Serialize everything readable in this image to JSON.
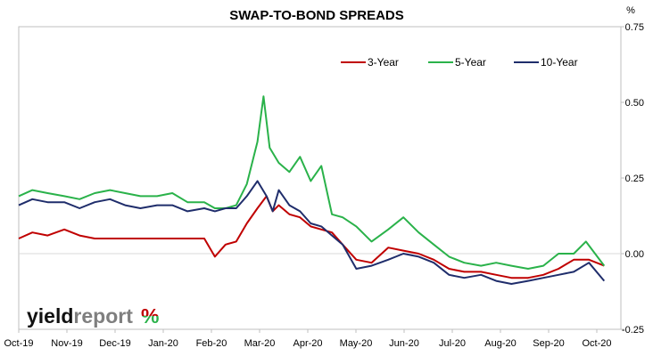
{
  "chart_data": {
    "type": "line",
    "title": "SWAP-TO-BOND SPREADS",
    "yunit": "%",
    "ylim": [
      -0.25,
      0.75
    ],
    "yticks": [
      "0.75",
      "0.50",
      "0.25",
      "0.00",
      "-0.25"
    ],
    "ytick_values": [
      0.75,
      0.5,
      0.25,
      0.0,
      -0.25
    ],
    "xticks": [
      "Oct-19",
      "Nov-19",
      "Dec-19",
      "Jan-20",
      "Feb-20",
      "Mar-20",
      "Apr-20",
      "May-20",
      "Jun-20",
      "Jul-20",
      "Aug-20",
      "Sep-20",
      "Oct-20"
    ],
    "x_start": "2019-10-01",
    "x_end": "2020-10-31",
    "legend": "top-right",
    "grid": false,
    "series": [
      {
        "name": "3-Year",
        "color": "#c00000",
        "points": [
          [
            "2019-10-01",
            0.05
          ],
          [
            "2019-10-10",
            0.07
          ],
          [
            "2019-10-20",
            0.06
          ],
          [
            "2019-10-31",
            0.08
          ],
          [
            "2019-11-10",
            0.06
          ],
          [
            "2019-11-20",
            0.05
          ],
          [
            "2019-11-30",
            0.05
          ],
          [
            "2019-12-10",
            0.05
          ],
          [
            "2019-12-20",
            0.05
          ],
          [
            "2019-12-31",
            0.05
          ],
          [
            "2020-01-10",
            0.05
          ],
          [
            "2020-01-20",
            0.05
          ],
          [
            "2020-01-31",
            0.05
          ],
          [
            "2020-02-07",
            -0.01
          ],
          [
            "2020-02-14",
            0.03
          ],
          [
            "2020-02-21",
            0.04
          ],
          [
            "2020-02-28",
            0.1
          ],
          [
            "2020-03-06",
            0.15
          ],
          [
            "2020-03-12",
            0.19
          ],
          [
            "2020-03-16",
            0.14
          ],
          [
            "2020-03-20",
            0.16
          ],
          [
            "2020-03-27",
            0.13
          ],
          [
            "2020-04-03",
            0.12
          ],
          [
            "2020-04-10",
            0.09
          ],
          [
            "2020-04-17",
            0.08
          ],
          [
            "2020-04-24",
            0.07
          ],
          [
            "2020-05-01",
            0.03
          ],
          [
            "2020-05-10",
            -0.02
          ],
          [
            "2020-05-20",
            -0.03
          ],
          [
            "2020-05-31",
            0.02
          ],
          [
            "2020-06-10",
            0.01
          ],
          [
            "2020-06-20",
            0.0
          ],
          [
            "2020-06-30",
            -0.02
          ],
          [
            "2020-07-10",
            -0.05
          ],
          [
            "2020-07-20",
            -0.06
          ],
          [
            "2020-07-31",
            -0.06
          ],
          [
            "2020-08-10",
            -0.07
          ],
          [
            "2020-08-20",
            -0.08
          ],
          [
            "2020-08-31",
            -0.08
          ],
          [
            "2020-09-10",
            -0.07
          ],
          [
            "2020-09-20",
            -0.05
          ],
          [
            "2020-09-30",
            -0.02
          ],
          [
            "2020-10-10",
            -0.02
          ],
          [
            "2020-10-20",
            -0.04
          ]
        ]
      },
      {
        "name": "5-Year",
        "color": "#2ab24a",
        "points": [
          [
            "2019-10-01",
            0.19
          ],
          [
            "2019-10-10",
            0.21
          ],
          [
            "2019-10-20",
            0.2
          ],
          [
            "2019-10-31",
            0.19
          ],
          [
            "2019-11-10",
            0.18
          ],
          [
            "2019-11-20",
            0.2
          ],
          [
            "2019-11-30",
            0.21
          ],
          [
            "2019-12-10",
            0.2
          ],
          [
            "2019-12-20",
            0.19
          ],
          [
            "2019-12-31",
            0.19
          ],
          [
            "2020-01-10",
            0.2
          ],
          [
            "2020-01-20",
            0.17
          ],
          [
            "2020-01-31",
            0.17
          ],
          [
            "2020-02-07",
            0.15
          ],
          [
            "2020-02-14",
            0.15
          ],
          [
            "2020-02-21",
            0.16
          ],
          [
            "2020-02-28",
            0.23
          ],
          [
            "2020-03-06",
            0.37
          ],
          [
            "2020-03-10",
            0.52
          ],
          [
            "2020-03-14",
            0.35
          ],
          [
            "2020-03-20",
            0.3
          ],
          [
            "2020-03-27",
            0.27
          ],
          [
            "2020-04-03",
            0.32
          ],
          [
            "2020-04-10",
            0.24
          ],
          [
            "2020-04-17",
            0.29
          ],
          [
            "2020-04-24",
            0.13
          ],
          [
            "2020-05-01",
            0.12
          ],
          [
            "2020-05-10",
            0.09
          ],
          [
            "2020-05-20",
            0.04
          ],
          [
            "2020-05-31",
            0.08
          ],
          [
            "2020-06-10",
            0.12
          ],
          [
            "2020-06-20",
            0.07
          ],
          [
            "2020-06-30",
            0.03
          ],
          [
            "2020-07-10",
            -0.01
          ],
          [
            "2020-07-20",
            -0.03
          ],
          [
            "2020-07-31",
            -0.04
          ],
          [
            "2020-08-10",
            -0.03
          ],
          [
            "2020-08-20",
            -0.04
          ],
          [
            "2020-08-31",
            -0.05
          ],
          [
            "2020-09-10",
            -0.04
          ],
          [
            "2020-09-20",
            0.0
          ],
          [
            "2020-09-30",
            0.0
          ],
          [
            "2020-10-08",
            0.04
          ],
          [
            "2020-10-20",
            -0.04
          ]
        ]
      },
      {
        "name": "10-Year",
        "color": "#1f2d6b",
        "points": [
          [
            "2019-10-01",
            0.16
          ],
          [
            "2019-10-10",
            0.18
          ],
          [
            "2019-10-20",
            0.17
          ],
          [
            "2019-10-31",
            0.17
          ],
          [
            "2019-11-10",
            0.15
          ],
          [
            "2019-11-20",
            0.17
          ],
          [
            "2019-11-30",
            0.18
          ],
          [
            "2019-12-10",
            0.16
          ],
          [
            "2019-12-20",
            0.15
          ],
          [
            "2019-12-31",
            0.16
          ],
          [
            "2020-01-10",
            0.16
          ],
          [
            "2020-01-20",
            0.14
          ],
          [
            "2020-01-31",
            0.15
          ],
          [
            "2020-02-07",
            0.14
          ],
          [
            "2020-02-14",
            0.15
          ],
          [
            "2020-02-21",
            0.15
          ],
          [
            "2020-02-28",
            0.19
          ],
          [
            "2020-03-06",
            0.24
          ],
          [
            "2020-03-12",
            0.19
          ],
          [
            "2020-03-16",
            0.14
          ],
          [
            "2020-03-20",
            0.21
          ],
          [
            "2020-03-27",
            0.16
          ],
          [
            "2020-04-03",
            0.14
          ],
          [
            "2020-04-10",
            0.1
          ],
          [
            "2020-04-17",
            0.09
          ],
          [
            "2020-04-24",
            0.06
          ],
          [
            "2020-05-01",
            0.03
          ],
          [
            "2020-05-10",
            -0.05
          ],
          [
            "2020-05-20",
            -0.04
          ],
          [
            "2020-05-31",
            -0.02
          ],
          [
            "2020-06-10",
            0.0
          ],
          [
            "2020-06-20",
            -0.01
          ],
          [
            "2020-06-30",
            -0.03
          ],
          [
            "2020-07-10",
            -0.07
          ],
          [
            "2020-07-20",
            -0.08
          ],
          [
            "2020-07-31",
            -0.07
          ],
          [
            "2020-08-10",
            -0.09
          ],
          [
            "2020-08-20",
            -0.1
          ],
          [
            "2020-08-31",
            -0.09
          ],
          [
            "2020-09-10",
            -0.08
          ],
          [
            "2020-09-20",
            -0.07
          ],
          [
            "2020-09-30",
            -0.06
          ],
          [
            "2020-10-10",
            -0.03
          ],
          [
            "2020-10-20",
            -0.09
          ]
        ]
      }
    ]
  },
  "branding": {
    "logo_word1": "yield",
    "logo_word2": "report",
    "logo_symbol": "%",
    "colors": {
      "word1": "#111111",
      "word2": "#7f7f7f",
      "pct_top": "#c00000",
      "pct_bottom": "#2ab24a"
    }
  }
}
